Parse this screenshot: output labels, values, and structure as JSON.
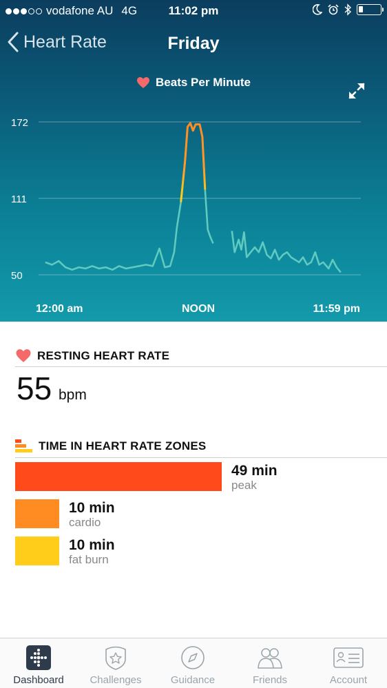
{
  "status_bar": {
    "carrier": "vodafone AU",
    "network": "4G",
    "time": "11:02 pm",
    "signal_bars_filled": 3,
    "signal_bars_total": 5,
    "battery_level": 0.2,
    "icons": [
      "moon-icon",
      "alarm-icon",
      "bluetooth-icon",
      "battery-icon"
    ]
  },
  "nav": {
    "back_label": "Heart Rate",
    "title": "Friday"
  },
  "legend": {
    "label": "Beats Per Minute",
    "heart_color": "#f4696a"
  },
  "chart_data": {
    "type": "line",
    "title": "Beats Per Minute",
    "y_ticks": [
      "172",
      "111",
      "50"
    ],
    "ylim": [
      50,
      172
    ],
    "x_ticks": [
      "12:00 am",
      "NOON",
      "11:59 pm"
    ],
    "grid": true,
    "series": [
      {
        "points": [
          [
            0.5,
            60
          ],
          [
            1.0,
            58
          ],
          [
            1.5,
            61
          ],
          [
            2.0,
            56
          ],
          [
            2.5,
            54
          ],
          [
            3.0,
            56
          ],
          [
            3.5,
            55
          ],
          [
            4.0,
            57
          ],
          [
            4.5,
            55
          ],
          [
            5.0,
            56
          ],
          [
            5.5,
            54
          ],
          [
            6.0,
            57
          ],
          [
            6.5,
            55
          ],
          [
            7.0,
            56
          ],
          [
            7.5,
            57
          ],
          [
            8.0,
            58
          ],
          [
            8.5,
            57
          ],
          [
            9.0,
            71
          ],
          [
            9.4,
            56
          ],
          [
            9.8,
            57
          ],
          [
            10.1,
            68
          ],
          [
            10.3,
            88
          ],
          [
            10.6,
            108
          ],
          [
            10.9,
            140
          ],
          [
            11.1,
            168
          ],
          [
            11.3,
            171
          ],
          [
            11.5,
            165
          ],
          [
            11.7,
            170
          ],
          [
            12.0,
            170
          ],
          [
            12.2,
            160
          ],
          [
            12.4,
            118
          ],
          [
            12.6,
            86
          ],
          [
            12.8,
            80
          ],
          [
            13.0,
            75
          ],
          [
            14.4,
            85
          ],
          [
            14.6,
            68
          ],
          [
            14.9,
            78
          ],
          [
            15.1,
            70
          ],
          [
            15.3,
            84
          ],
          [
            15.5,
            64
          ],
          [
            15.8,
            68
          ],
          [
            16.1,
            72
          ],
          [
            16.4,
            68
          ],
          [
            16.7,
            76
          ],
          [
            17.0,
            66
          ],
          [
            17.3,
            63
          ],
          [
            17.6,
            70
          ],
          [
            17.9,
            62
          ],
          [
            18.2,
            66
          ],
          [
            18.5,
            68
          ],
          [
            18.8,
            64
          ],
          [
            19.1,
            62
          ],
          [
            19.4,
            60
          ],
          [
            19.7,
            64
          ],
          [
            20.0,
            58
          ],
          [
            20.3,
            60
          ],
          [
            20.6,
            68
          ],
          [
            20.9,
            58
          ],
          [
            21.2,
            60
          ],
          [
            21.6,
            55
          ],
          [
            21.9,
            62
          ],
          [
            22.2,
            56
          ],
          [
            22.5,
            52
          ]
        ]
      }
    ],
    "line_color": "#5fcabf",
    "zone_colors": {
      "fat_burn": "#ffcd1a",
      "cardio": "#ff8c23",
      "peak": "#ff4a1c"
    }
  },
  "resting": {
    "title": "RESTING HEART RATE",
    "value": "55",
    "unit": "bpm"
  },
  "zones": {
    "title": "TIME IN HEART RATE ZONES",
    "items": [
      {
        "value": "49 min",
        "label": "peak",
        "color": "#ff4a1c",
        "minutes": 49
      },
      {
        "value": "10 min",
        "label": "cardio",
        "color": "#ff8c23",
        "minutes": 10
      },
      {
        "value": "10 min",
        "label": "fat burn",
        "color": "#ffcd1a",
        "minutes": 10
      }
    ]
  },
  "tabbar": {
    "active": "Dashboard",
    "tabs": [
      {
        "label": "Dashboard",
        "icon": "dashboard-icon"
      },
      {
        "label": "Challenges",
        "icon": "challenges-icon"
      },
      {
        "label": "Guidance",
        "icon": "compass-icon"
      },
      {
        "label": "Friends",
        "icon": "friends-icon"
      },
      {
        "label": "Account",
        "icon": "account-card-icon"
      }
    ]
  }
}
